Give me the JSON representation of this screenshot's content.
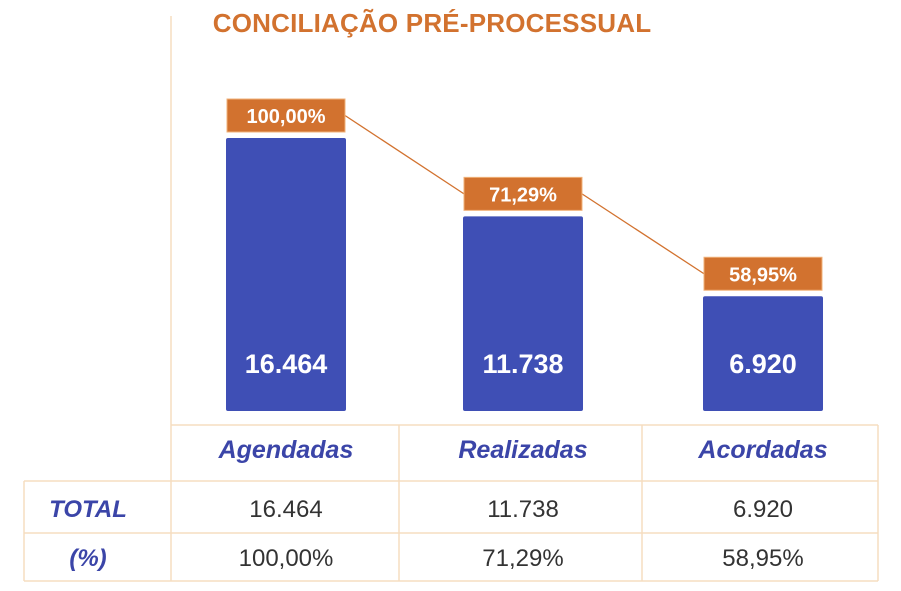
{
  "chart_data": {
    "type": "bar",
    "title": "CONCILIAÇÃO PRÉ-PROCESSUAL",
    "categories": [
      "Agendadas",
      "Realizadas",
      "Acordadas"
    ],
    "values": [
      16464,
      11738,
      6920
    ],
    "value_labels": [
      "16.464",
      "11.738",
      "6.920"
    ],
    "percent_values": [
      100.0,
      71.29,
      58.95
    ],
    "percent_labels": [
      "100,00%",
      "71,29%",
      "58,95%"
    ],
    "xlabel": "",
    "ylabel": "",
    "ylim": [
      0,
      16464
    ],
    "grid": false,
    "legend": "none",
    "table": {
      "row_total_label": "TOTAL",
      "row_pct_label": "(%)",
      "totals": [
        "16.464",
        "11.738",
        "6.920"
      ],
      "percents": [
        "100,00%",
        "71,29%",
        "58,95%"
      ]
    }
  },
  "colors": {
    "bar": "#3f4fb5",
    "accent": "#d2722f",
    "category_text": "#3b45a8",
    "table_text": "#333333",
    "grid_line": "#f6ddc0"
  }
}
